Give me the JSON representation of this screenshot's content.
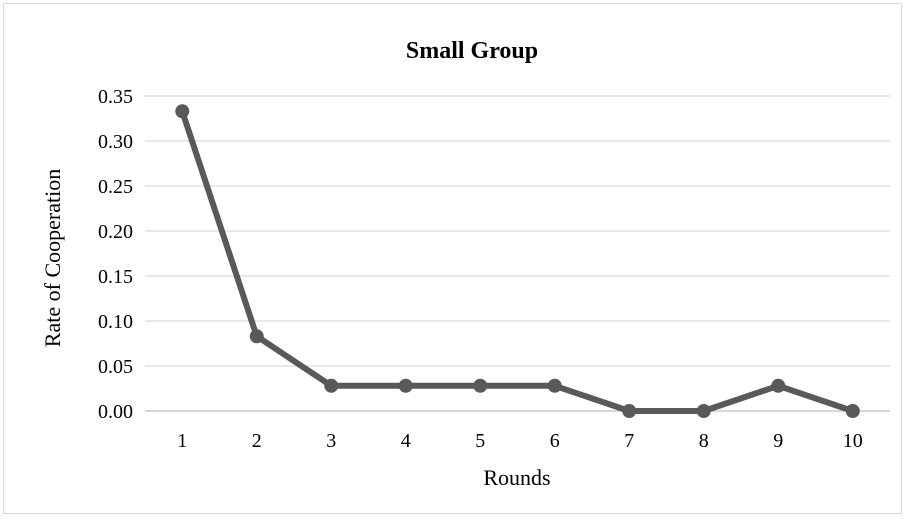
{
  "chart_data": {
    "type": "line",
    "title": "Small Group",
    "xlabel": "Rounds",
    "ylabel": "Rate of Cooperation",
    "categories": [
      "1",
      "2",
      "3",
      "4",
      "5",
      "6",
      "7",
      "8",
      "9",
      "10"
    ],
    "series": [
      {
        "values": [
          0.333,
          0.083,
          0.028,
          0.028,
          0.028,
          0.028,
          0.0,
          0.0,
          0.028,
          0.0
        ]
      }
    ],
    "ylim": [
      0,
      0.35
    ],
    "yticks": [
      "0.00",
      "0.05",
      "0.10",
      "0.15",
      "0.20",
      "0.25",
      "0.30",
      "0.35"
    ],
    "grid": true,
    "legend": "none",
    "colors": {
      "series": "#595959",
      "grid": "#d9d9d9"
    }
  }
}
